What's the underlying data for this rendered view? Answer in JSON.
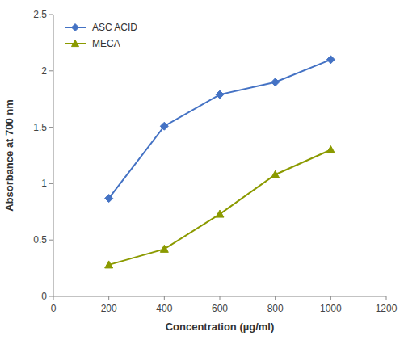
{
  "chart_data": {
    "type": "line",
    "xlabel": "Concentration (µg/ml)",
    "ylabel": "Absorbance at 700 nm",
    "x": [
      200,
      400,
      600,
      800,
      1000
    ],
    "series": [
      {
        "name": "ASC ACID",
        "color": "#4472C4",
        "marker": "diamond",
        "values": [
          0.87,
          1.51,
          1.79,
          1.9,
          2.1
        ]
      },
      {
        "name": "MECA",
        "color": "#8B9A00",
        "marker": "triangle",
        "values": [
          0.28,
          0.42,
          0.73,
          1.08,
          1.3
        ]
      }
    ],
    "xlim": [
      0,
      1200
    ],
    "ylim": [
      0,
      2.5
    ],
    "xticks": [
      0,
      200,
      400,
      600,
      800,
      1000,
      1200
    ],
    "yticks": [
      0,
      0.5,
      1,
      1.5,
      2,
      2.5
    ],
    "legend": "upper left",
    "grid": false
  }
}
